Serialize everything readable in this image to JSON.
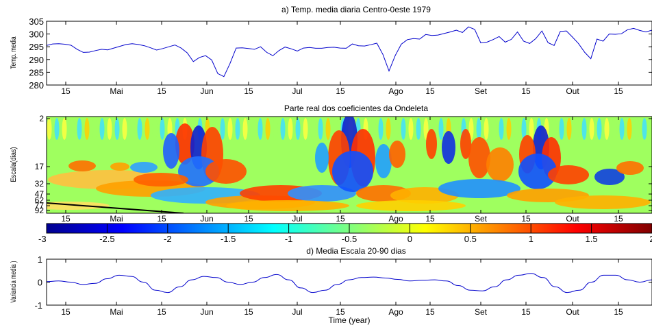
{
  "chart_data": [
    {
      "type": "line",
      "title": "a) Temp. media diaria Centro-0este 1979",
      "ylabel": "Temp. media",
      "xlabel": "",
      "ylim": [
        280,
        305
      ],
      "yticks": [
        280,
        285,
        290,
        295,
        300,
        305
      ],
      "xticks": [
        "15",
        "Mai",
        "15",
        "Jun",
        "15",
        "Jul",
        "15",
        "Ago",
        "15",
        "Set",
        "15",
        "Out",
        "15"
      ],
      "x": [
        0,
        2,
        4,
        6,
        8,
        10,
        12,
        14,
        16,
        18,
        20,
        22,
        24,
        26,
        28,
        30,
        32,
        34,
        36,
        38,
        40,
        42,
        44,
        46,
        48,
        50,
        52,
        54,
        56,
        58,
        60,
        62,
        64,
        66,
        68,
        70,
        72,
        74,
        76,
        78,
        80,
        82,
        84,
        86,
        88,
        90,
        92,
        94,
        96,
        98,
        100,
        102,
        104,
        106,
        108,
        110,
        112,
        114,
        116,
        118,
        120,
        122,
        124,
        126,
        128,
        130,
        132,
        134,
        136,
        138,
        140,
        142,
        144,
        146,
        148,
        150,
        152,
        154,
        156,
        158,
        160,
        162,
        164,
        166,
        168,
        170,
        172,
        174,
        176,
        178,
        180,
        182,
        184,
        186,
        188,
        190,
        192,
        194,
        196,
        198
      ],
      "values": [
        295.5,
        296.1,
        296.2,
        296,
        295.6,
        294,
        292.8,
        292.9,
        293.5,
        294,
        293.8,
        294.5,
        295.2,
        295.9,
        296.2,
        295.9,
        295.4,
        294.6,
        293.7,
        294.3,
        295,
        295.7,
        294.5,
        292.6,
        289.2,
        290.8,
        291.5,
        289.8,
        284.5,
        283.3,
        288.5,
        294.5,
        294.6,
        294.3,
        294,
        295,
        292.8,
        291.5,
        293.5,
        294.9,
        294.2,
        293.3,
        294.5,
        294.7,
        294.4,
        294.4,
        294.7,
        294.8,
        294.5,
        294.4,
        296.1,
        295.4,
        295.3,
        295.8,
        296.4,
        292,
        285.5,
        291.5,
        296,
        297.8,
        298.2,
        298,
        299.8,
        299.4,
        299.6,
        300.2,
        300.8,
        301.5,
        300.6,
        302.8,
        301.8,
        296.5,
        296.8,
        297.8,
        299,
        296.8,
        297.9,
        300.8,
        297.2,
        296.3,
        298.2,
        301.2,
        296.6,
        295.5,
        301,
        301.2,
        298.8,
        296.2,
        292.8,
        290.3,
        298,
        297.2,
        300,
        299.9,
        300.1,
        301.7,
        302.2,
        301.4,
        300.8,
        301.5
      ]
    },
    {
      "type": "heatmap",
      "title": "Parte real dos coeficientes da Ondeleta",
      "ylabel": "Escala(dias)",
      "yticks": [
        2,
        17,
        32,
        47,
        62,
        77,
        92
      ],
      "xticks": [
        "15",
        "Mai",
        "15",
        "Jun",
        "15",
        "Jul",
        "15",
        "Ago",
        "15",
        "Set",
        "15",
        "Out",
        "15"
      ],
      "colorbar": {
        "ticks": [
          -3,
          -2.5,
          -2,
          -1.5,
          -1,
          -0.5,
          0,
          0.5,
          1,
          1.5,
          2
        ],
        "tick_labels": [
          "-3",
          "-2.5",
          "-2",
          "-1.5",
          "-1",
          "-0.5",
          "0",
          "0.5",
          "1",
          "1.5",
          "2"
        ],
        "range": [
          -3,
          2
        ],
        "colormap": "jet"
      }
    },
    {
      "type": "line",
      "title": "d) Media Escala 20-90 dias",
      "ylabel": "Variancia media )",
      "xlabel": "Time (year)",
      "ylim": [
        -1,
        1
      ],
      "yticks": [
        -1,
        0,
        1
      ],
      "xticks": [
        "15",
        "Mai",
        "15",
        "Jun",
        "15",
        "Jul",
        "15",
        "Ago",
        "15",
        "Set",
        "15",
        "Out",
        "15"
      ],
      "x": [
        0,
        4,
        8,
        12,
        16,
        20,
        24,
        28,
        32,
        36,
        40,
        44,
        48,
        52,
        56,
        60,
        64,
        68,
        72,
        76,
        80,
        84,
        88,
        92,
        96,
        100,
        104,
        108,
        112,
        116,
        120,
        124,
        128,
        132,
        136,
        140,
        144,
        148,
        152,
        156,
        160,
        164,
        168,
        172,
        176,
        180,
        184,
        188,
        192,
        196,
        200
      ],
      "values": [
        0.02,
        0.05,
        0,
        -0.1,
        -0.05,
        0.15,
        0.3,
        0.25,
        0,
        -0.35,
        -0.45,
        -0.2,
        0.1,
        0.25,
        0.2,
        0,
        -0.1,
        0,
        0.2,
        0.33,
        0.1,
        -0.25,
        -0.45,
        -0.35,
        -0.1,
        0.1,
        0.2,
        0.22,
        0.18,
        0.12,
        0.05,
        0.08,
        0.1,
        0.05,
        -0.15,
        -0.35,
        -0.38,
        -0.2,
        0.1,
        0.3,
        0.38,
        0.2,
        -0.2,
        -0.45,
        -0.35,
        0,
        0.3,
        0.3,
        0.1,
        0,
        0.1
      ]
    }
  ]
}
